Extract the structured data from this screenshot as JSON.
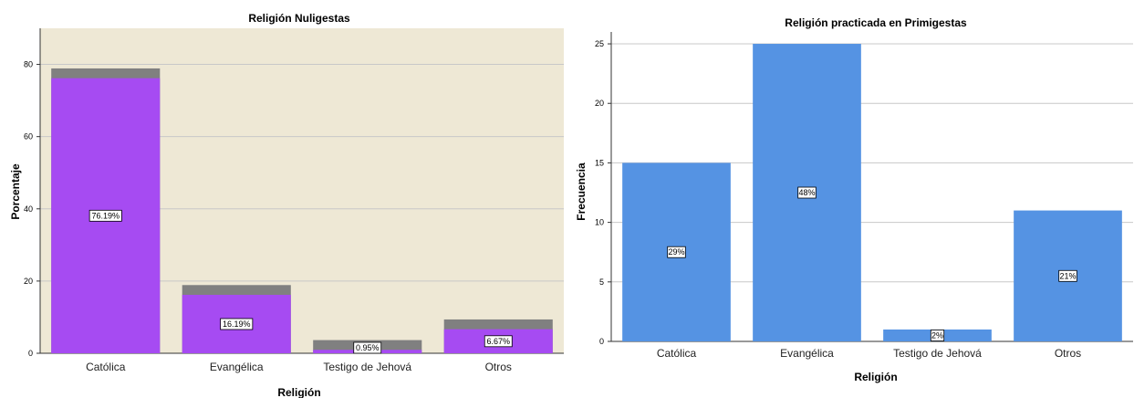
{
  "chart_data": [
    {
      "type": "bar",
      "title": "Religión Nuligestas",
      "xlabel": "Religión",
      "ylabel": "Porcentaje",
      "categories": [
        "Católica",
        "Evangélica",
        "Testigo de Jehová",
        "Otros"
      ],
      "values": [
        76.19,
        16.19,
        0.95,
        6.67
      ],
      "value_labels": [
        "76.19%",
        "16.19%",
        "0.95%",
        "6.67%"
      ],
      "ylim": [
        0,
        90
      ],
      "yticks": [
        0,
        20,
        40,
        60,
        80
      ],
      "grid": true,
      "bar_color": "#a64bf2",
      "shadow_color": "#808080",
      "plot_background": "#eee8d5"
    },
    {
      "type": "bar",
      "title": "Religión practicada en Primigestas",
      "xlabel": "Religión",
      "ylabel": "Frecuencia",
      "categories": [
        "Católica",
        "Evangélica",
        "Testigo de Jehová",
        "Otros"
      ],
      "values": [
        15,
        25,
        1,
        11
      ],
      "value_labels": [
        "29%",
        "48%",
        "2%",
        "21%"
      ],
      "ylim": [
        0,
        26
      ],
      "yticks": [
        0,
        5,
        10,
        15,
        20,
        25
      ],
      "grid": true,
      "bar_color": "#5593e3",
      "plot_background": "#ffffff"
    }
  ]
}
